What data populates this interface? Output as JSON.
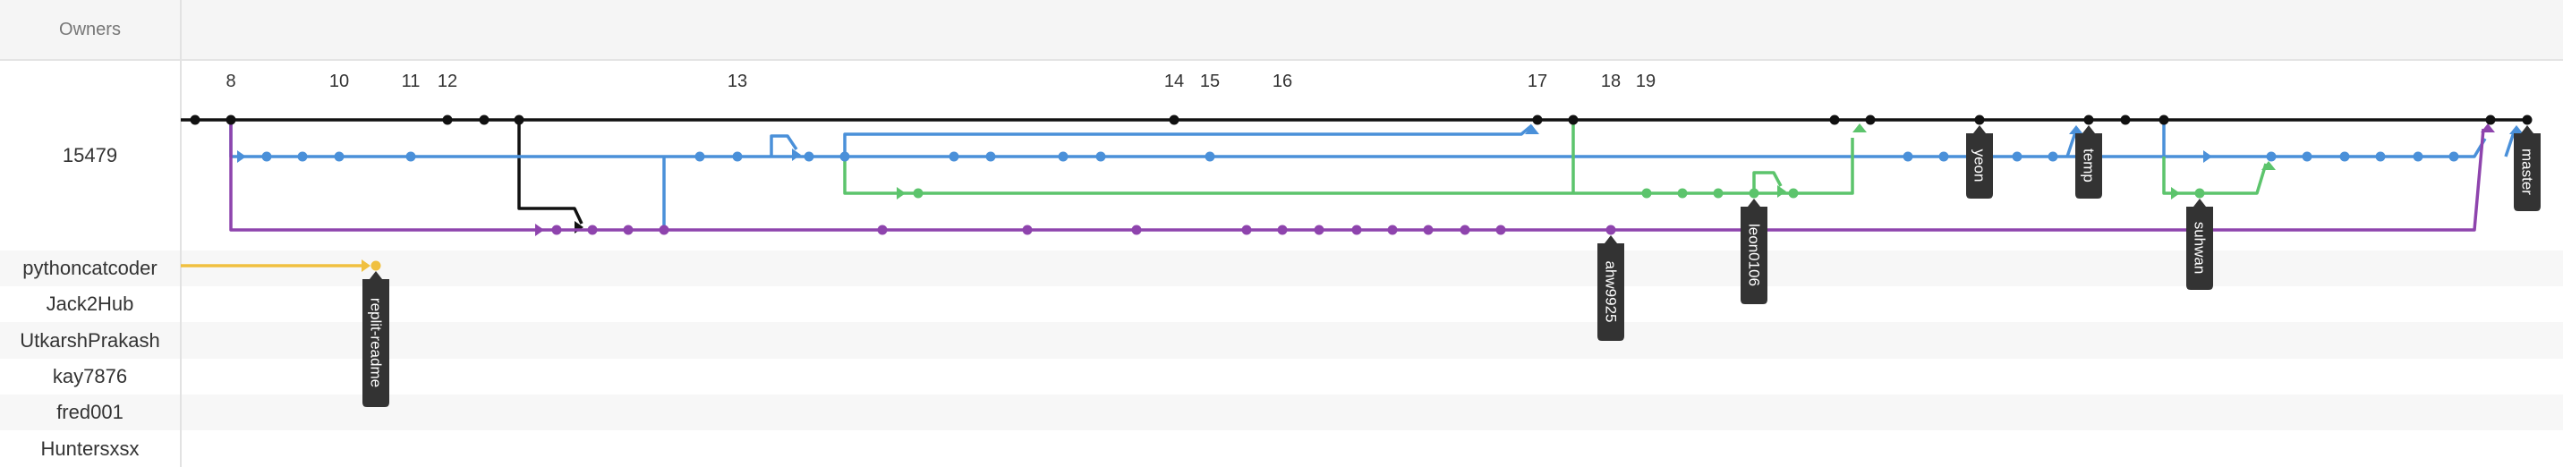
{
  "header": {
    "owners_label": "Owners"
  },
  "owners": [
    {
      "name": "15479"
    },
    {
      "name": "pythoncatcoder"
    },
    {
      "name": "Jack2Hub"
    },
    {
      "name": "UtkarshPrakash"
    },
    {
      "name": "kay7876"
    },
    {
      "name": "fred001"
    },
    {
      "name": "Huntersxsx"
    }
  ],
  "ticks": [
    "8",
    "10",
    "11",
    "12",
    "13",
    "14",
    "15",
    "16",
    "17",
    "18",
    "19"
  ],
  "branches": [
    {
      "name": "replit-readme"
    },
    {
      "name": "ahw9925"
    },
    {
      "name": "leon0106"
    },
    {
      "name": "yeon"
    },
    {
      "name": "temp"
    },
    {
      "name": "suhwan"
    },
    {
      "name": "master"
    }
  ],
  "colors": {
    "black": "#111111",
    "blue": "#4a90d9",
    "green": "#5cc46c",
    "purple": "#8e44ad",
    "yellow": "#f0c040",
    "label_bg": "#333333"
  }
}
